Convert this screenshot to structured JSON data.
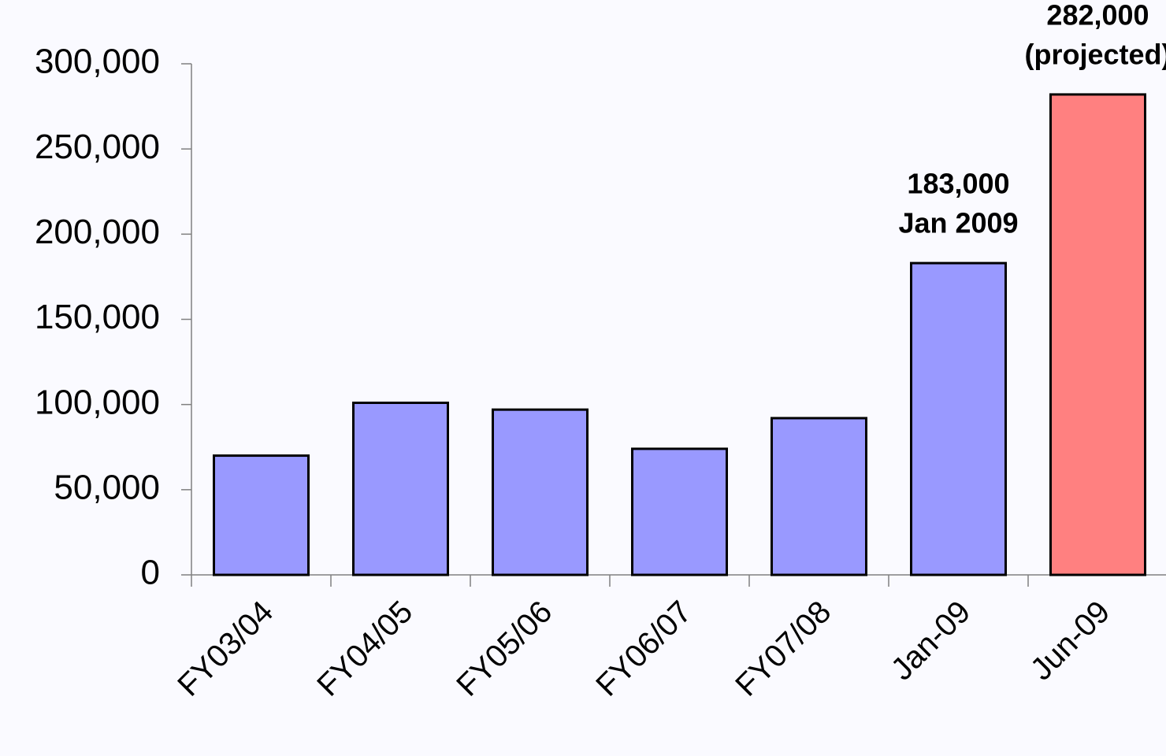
{
  "chart_data": {
    "type": "bar",
    "categories": [
      "FY03/04",
      "FY04/05",
      "FY05/06",
      "FY06/07",
      "FY07/08",
      "Jan-09",
      "Jun-09"
    ],
    "values": [
      70000,
      101000,
      97000,
      74000,
      92000,
      183000,
      282000
    ],
    "colors": [
      "#9999ff",
      "#9999ff",
      "#9999ff",
      "#9999ff",
      "#9999ff",
      "#9999ff",
      "#ff8080"
    ],
    "value_labels": [
      null,
      null,
      null,
      null,
      null,
      "183,000",
      "282,000"
    ],
    "value_notes": [
      null,
      null,
      null,
      null,
      null,
      "Jan 2009",
      "(projected)"
    ],
    "ylim": [
      0,
      300000
    ],
    "yticks": [
      0,
      {
        "value": 50000,
        "label": "50,000"
      },
      {
        "value": 100000,
        "label": "100,000"
      },
      {
        "value": 150000,
        "label": "150,000"
      },
      {
        "value": 200000,
        "label": "200,000"
      },
      {
        "value": 250000,
        "label": "250,000"
      },
      {
        "value": 300000,
        "label": "300,000"
      }
    ],
    "grid": false
  }
}
